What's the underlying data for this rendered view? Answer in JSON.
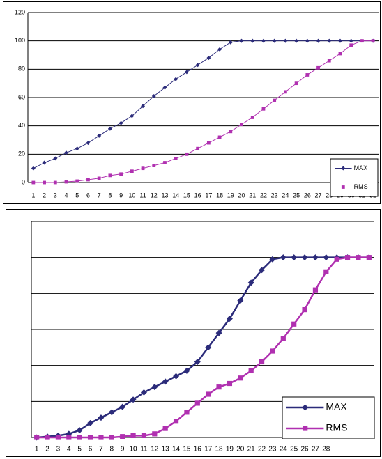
{
  "chart_data": [
    {
      "type": "line",
      "categories": [
        "1",
        "2",
        "3",
        "4",
        "5",
        "6",
        "7",
        "8",
        "9",
        "10",
        "11",
        "12",
        "13",
        "14",
        "15",
        "16",
        "17",
        "18",
        "19",
        "20",
        "21",
        "22",
        "23",
        "24",
        "25",
        "26",
        "27",
        "28",
        "29",
        "30",
        "31",
        "32"
      ],
      "series": [
        {
          "name": "MAX",
          "color": "#2b2b7a",
          "marker": "diamond",
          "values": [
            10,
            14,
            17,
            21,
            24,
            28,
            33,
            38,
            42,
            47,
            54,
            61,
            67,
            73,
            78,
            83,
            88,
            94,
            99,
            100,
            100,
            100,
            100,
            100,
            100,
            100,
            100,
            100,
            100,
            100,
            100,
            100
          ]
        },
        {
          "name": "RMS",
          "color": "#b030b0",
          "marker": "square",
          "values": [
            0,
            0,
            0,
            0.5,
            1,
            2,
            3,
            5,
            6,
            8,
            10,
            12,
            14,
            17,
            20,
            24,
            28,
            32,
            36,
            41,
            46,
            52,
            58,
            64,
            70,
            76,
            81,
            86,
            91,
            97,
            100,
            100
          ]
        }
      ],
      "ylim": [
        0,
        120
      ],
      "yticks": [
        0,
        20,
        40,
        60,
        80,
        100,
        120
      ],
      "grid": true,
      "legend": "lower right"
    },
    {
      "type": "line",
      "categories": [
        "1",
        "2",
        "3",
        "4",
        "5",
        "6",
        "7",
        "8",
        "9",
        "10",
        "11",
        "12",
        "13",
        "14",
        "15",
        "16",
        "17",
        "18",
        "19",
        "20",
        "21",
        "22",
        "23",
        "24",
        "25",
        "26",
        "27",
        "28",
        null,
        null,
        null,
        null
      ],
      "series": [
        {
          "name": "MAX",
          "color": "#2b2b7a",
          "marker": "diamond",
          "values": [
            0,
            0.5,
            1,
            2,
            4,
            8,
            11,
            14,
            17,
            21,
            25,
            28,
            31,
            34,
            37,
            42,
            50,
            58,
            66,
            76,
            86,
            93,
            99,
            100,
            100,
            100,
            100,
            100,
            100,
            100,
            100,
            100
          ]
        },
        {
          "name": "RMS",
          "color": "#b030b0",
          "marker": "square",
          "values": [
            0,
            0,
            0,
            0,
            0,
            0,
            0,
            0,
            0.5,
            1,
            1,
            2,
            5,
            9,
            14,
            19,
            24,
            28,
            30,
            33,
            37,
            42,
            48,
            55,
            63,
            71,
            82,
            92,
            99,
            100,
            100,
            100
          ]
        }
      ],
      "ylim": [
        0,
        120
      ],
      "grid_values": [
        0,
        20,
        40,
        60,
        80,
        100,
        120
      ],
      "grid": true,
      "legend": "lower right"
    }
  ]
}
